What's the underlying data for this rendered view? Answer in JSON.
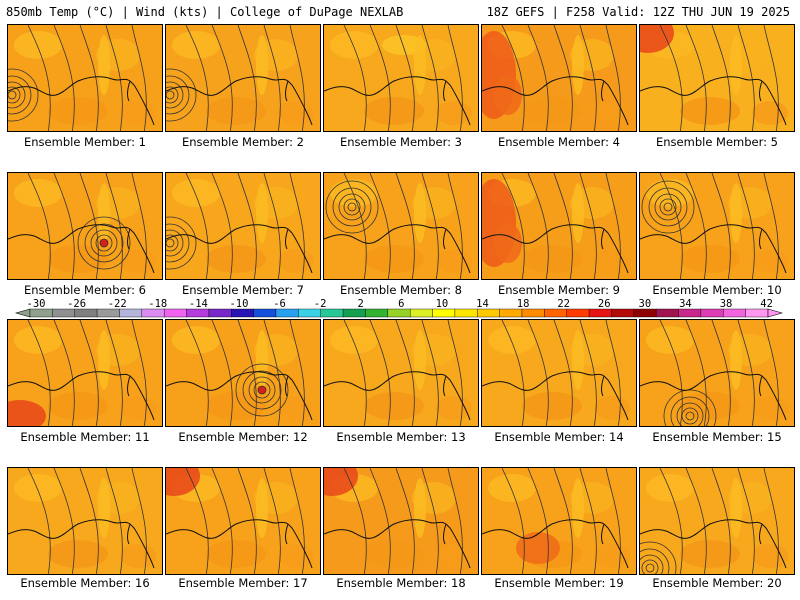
{
  "header": {
    "left": "850mb Temp (°C) | Wind (kts) | College of DuPage NEXLAB",
    "right": "18Z GEFS | F258 Valid: 12Z THU JUN 19 2025"
  },
  "caption_prefix": "Ensemble Member:",
  "members": [
    {
      "number": "1",
      "base_color": "#f7a11a",
      "feature": "low-west"
    },
    {
      "number": "2",
      "base_color": "#f7a21c",
      "feature": "low-west"
    },
    {
      "number": "3",
      "base_color": "#f8a81c",
      "feature": "trough"
    },
    {
      "number": "4",
      "base_color": "#f59a1a",
      "feature": "hot-west"
    },
    {
      "number": "5",
      "base_color": "#f9b01e",
      "feature": "hot-nw"
    },
    {
      "number": "6",
      "base_color": "#f7a21a",
      "feature": "low-gulf"
    },
    {
      "number": "7",
      "base_color": "#f8a61c",
      "feature": "low-west"
    },
    {
      "number": "8",
      "base_color": "#f7a21a",
      "feature": "low-north"
    },
    {
      "number": "9",
      "base_color": "#f69d1a",
      "feature": "hot-west"
    },
    {
      "number": "10",
      "base_color": "#f7a21a",
      "feature": "low-north"
    },
    {
      "number": "11",
      "base_color": "#f7a21a",
      "feature": "hot-sw"
    },
    {
      "number": "12",
      "base_color": "#f7a01a",
      "feature": "low-gulf"
    },
    {
      "number": "13",
      "base_color": "#f8a81c",
      "feature": "plain"
    },
    {
      "number": "14",
      "base_color": "#f8a81c",
      "feature": "plain"
    },
    {
      "number": "15",
      "base_color": "#f7a21a",
      "feature": "low-south"
    },
    {
      "number": "16",
      "base_color": "#f8a81c",
      "feature": "plain"
    },
    {
      "number": "17",
      "base_color": "#f7a21a",
      "feature": "hot-nw"
    },
    {
      "number": "18",
      "base_color": "#f59a1a",
      "feature": "hot-nw"
    },
    {
      "number": "19",
      "base_color": "#f7a21a",
      "feature": "hot-gulf"
    },
    {
      "number": "20",
      "base_color": "#f8a81c",
      "feature": "low-sw"
    }
  ],
  "colorbar": {
    "ticks": [
      "-30",
      "-26",
      "-22",
      "-18",
      "-14",
      "-10",
      "-6",
      "-2",
      "2",
      "6",
      "10",
      "14",
      "18",
      "22",
      "26",
      "30",
      "34",
      "38",
      "42"
    ],
    "colors": [
      "#8fa08f",
      "#909090",
      "#808080",
      "#9a9a9a",
      "#b4b4dc",
      "#dc8cf0",
      "#f064f0",
      "#b43cdc",
      "#7828c8",
      "#2814b4",
      "#1450dc",
      "#28a0f0",
      "#3cd2e6",
      "#28c896",
      "#14a050",
      "#32b432",
      "#96d228",
      "#dcf028",
      "#ffff00",
      "#ffe600",
      "#ffc800",
      "#ffaa00",
      "#ff8c00",
      "#ff6400",
      "#ff3c00",
      "#e61414",
      "#b40a0a",
      "#8c0000",
      "#a01450",
      "#c8288c",
      "#dc3cb4",
      "#f064dc",
      "#ff96f0"
    ]
  }
}
